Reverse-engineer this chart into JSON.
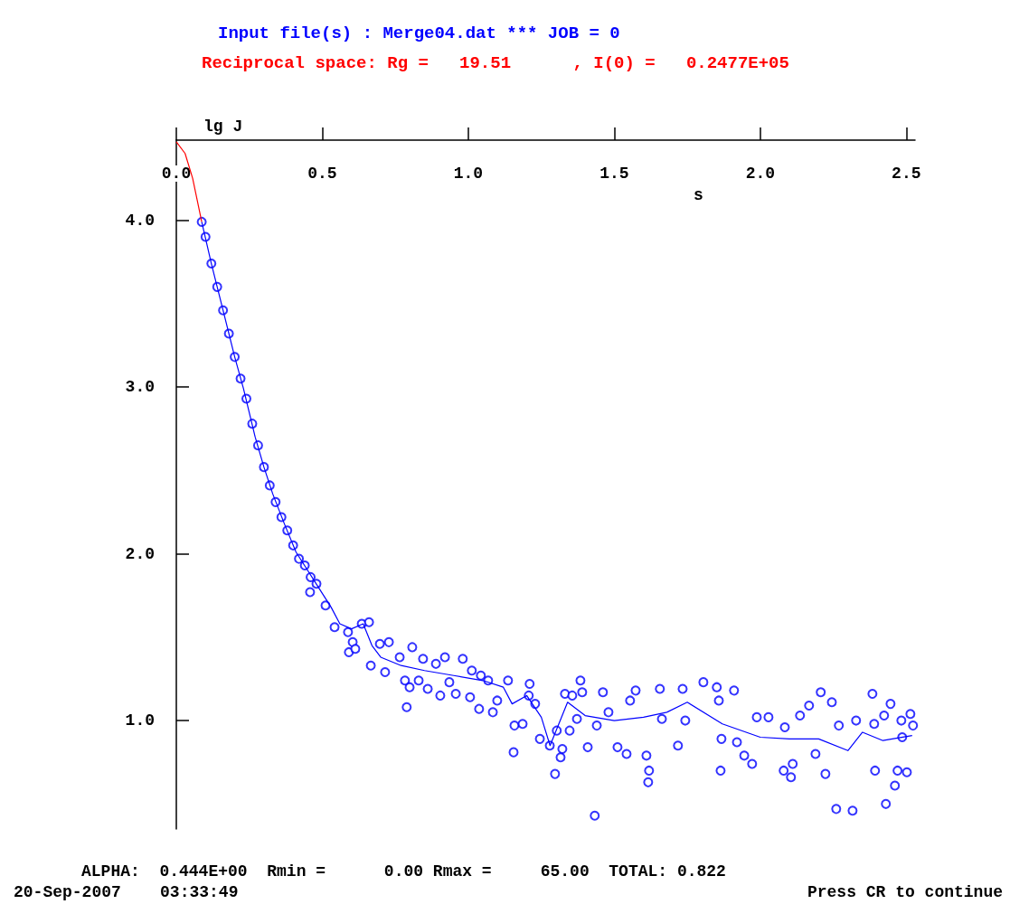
{
  "chart_data": {
    "type": "scatter",
    "title": "Input file(s) : Merge04.dat *** JOB = 0",
    "subtitle": "Reciprocal space: Rg =   19.51      , I(0) =   0.2477E+05",
    "xlabel": "s",
    "ylabel": "lg J",
    "annotations": [
      "ALPHA:  0.444E+00  Rmin =      0.00 Rmax =     65.00  TOTAL: 0.822",
      "20-Sep-2007    03:33:49",
      "Press CR to continue"
    ],
    "xlim": [
      0,
      2.53
    ],
    "ylim": [
      0.35,
      4.48
    ],
    "xticks": [
      {
        "value": 0,
        "label": "0.0"
      },
      {
        "value": 0.5,
        "label": "0.5"
      },
      {
        "value": 1,
        "label": "1.0"
      },
      {
        "value": 1.5,
        "label": "1.5"
      },
      {
        "value": 2,
        "label": "2.0"
      },
      {
        "value": 2.5,
        "label": "2.5"
      }
    ],
    "yticks": [
      {
        "value": 1,
        "label": "1.0"
      },
      {
        "value": 2,
        "label": "2.0"
      },
      {
        "value": 3,
        "label": "3.0"
      },
      {
        "value": 4,
        "label": "4.0"
      }
    ],
    "series": [
      {
        "type": "scatter",
        "marker": "circle",
        "color": "#0000ff",
        "x": [
          0.087,
          0.1,
          0.12,
          0.14,
          0.16,
          0.18,
          0.2,
          0.22,
          0.24,
          0.26,
          0.28,
          0.3,
          0.32,
          0.34,
          0.36,
          0.38,
          0.4,
          0.42,
          0.44,
          0.46,
          0.48,
          0.458,
          0.511,
          0.542,
          0.588,
          0.604,
          0.591,
          0.613,
          0.635,
          0.66,
          0.666,
          0.697,
          0.715,
          0.728,
          0.765,
          0.783,
          0.789,
          0.799,
          0.808,
          0.83,
          0.845,
          0.861,
          0.889,
          0.904,
          0.92,
          0.935,
          0.957,
          0.981,
          1.006,
          1.012,
          1.037,
          1.043,
          1.068,
          1.084,
          1.099,
          1.136,
          1.155,
          1.158,
          1.186,
          1.207,
          1.21,
          1.229,
          1.245,
          1.279,
          1.297,
          1.303,
          1.316,
          1.322,
          1.331,
          1.347,
          1.356,
          1.372,
          1.384,
          1.39,
          1.409,
          1.433,
          1.44,
          1.461,
          1.48,
          1.511,
          1.542,
          1.554,
          1.573,
          1.61,
          1.616,
          1.619,
          1.656,
          1.663,
          1.718,
          1.734,
          1.743,
          1.805,
          1.851,
          1.858,
          1.864,
          1.867,
          1.91,
          1.92,
          1.945,
          1.972,
          1.988,
          2.028,
          2.08,
          2.084,
          2.105,
          2.111,
          2.136,
          2.167,
          2.189,
          2.207,
          2.223,
          2.245,
          2.26,
          2.269,
          2.316,
          2.328,
          2.384,
          2.39,
          2.393,
          2.424,
          2.43,
          2.446,
          2.461,
          2.47,
          2.483,
          2.486,
          2.502,
          2.514,
          2.523
        ],
        "values": [
          3.99,
          3.9,
          3.74,
          3.6,
          3.46,
          3.32,
          3.18,
          3.05,
          2.93,
          2.78,
          2.65,
          2.52,
          2.41,
          2.31,
          2.22,
          2.14,
          2.05,
          1.97,
          1.93,
          1.86,
          1.82,
          1.77,
          1.69,
          1.56,
          1.53,
          1.47,
          1.41,
          1.43,
          1.58,
          1.59,
          1.33,
          1.46,
          1.29,
          1.47,
          1.38,
          1.24,
          1.08,
          1.2,
          1.44,
          1.24,
          1.37,
          1.19,
          1.34,
          1.15,
          1.38,
          1.23,
          1.16,
          1.37,
          1.14,
          1.3,
          1.07,
          1.27,
          1.24,
          1.05,
          1.12,
          1.24,
          0.81,
          0.97,
          0.98,
          1.15,
          1.22,
          1.1,
          0.89,
          0.85,
          0.68,
          0.94,
          0.78,
          0.83,
          1.16,
          0.94,
          1.15,
          1.01,
          1.24,
          1.17,
          0.84,
          0.43,
          0.97,
          1.17,
          1.05,
          0.84,
          0.8,
          1.12,
          1.18,
          0.79,
          0.63,
          0.7,
          1.19,
          1.01,
          0.85,
          1.19,
          1.0,
          1.23,
          1.2,
          1.12,
          0.7,
          0.89,
          1.18,
          0.87,
          0.79,
          0.74,
          1.02,
          1.02,
          0.7,
          0.96,
          0.66,
          0.74,
          1.03,
          1.09,
          0.8,
          1.17,
          0.68,
          1.11,
          0.47,
          0.97,
          0.46,
          1.0,
          1.16,
          0.98,
          0.7,
          1.03,
          0.5,
          1.1,
          0.61,
          0.7,
          1.0,
          0.9,
          0.69,
          1.04,
          0.97
        ]
      },
      {
        "type": "line",
        "marker": "none",
        "color": "#0000ff",
        "x": [
          0.087,
          0.12,
          0.16,
          0.2,
          0.23,
          0.27,
          0.3,
          0.33,
          0.37,
          0.41,
          0.45,
          0.49,
          0.53,
          0.56,
          0.6,
          0.64,
          0.67,
          0.7,
          0.77,
          0.85,
          0.95,
          1.05,
          1.12,
          1.15,
          1.2,
          1.25,
          1.28,
          1.34,
          1.4,
          1.5,
          1.6,
          1.68,
          1.75,
          1.87,
          2.0,
          2.1,
          2.2,
          2.3,
          2.35,
          2.42,
          2.52
        ],
        "values": [
          3.99,
          3.74,
          3.46,
          3.18,
          2.99,
          2.7,
          2.52,
          2.36,
          2.18,
          2.01,
          1.9,
          1.79,
          1.68,
          1.58,
          1.55,
          1.58,
          1.45,
          1.38,
          1.33,
          1.3,
          1.27,
          1.24,
          1.2,
          1.1,
          1.15,
          1.02,
          0.85,
          1.11,
          1.03,
          1.0,
          1.02,
          1.05,
          1.11,
          0.98,
          0.9,
          0.89,
          0.89,
          0.82,
          0.93,
          0.88,
          0.91
        ]
      },
      {
        "type": "line",
        "marker": "none",
        "color": "#ff0000",
        "x": [
          0,
          0.03,
          0.056,
          0.087
        ],
        "values": [
          4.47,
          4.4,
          4.25,
          3.99
        ]
      }
    ]
  }
}
